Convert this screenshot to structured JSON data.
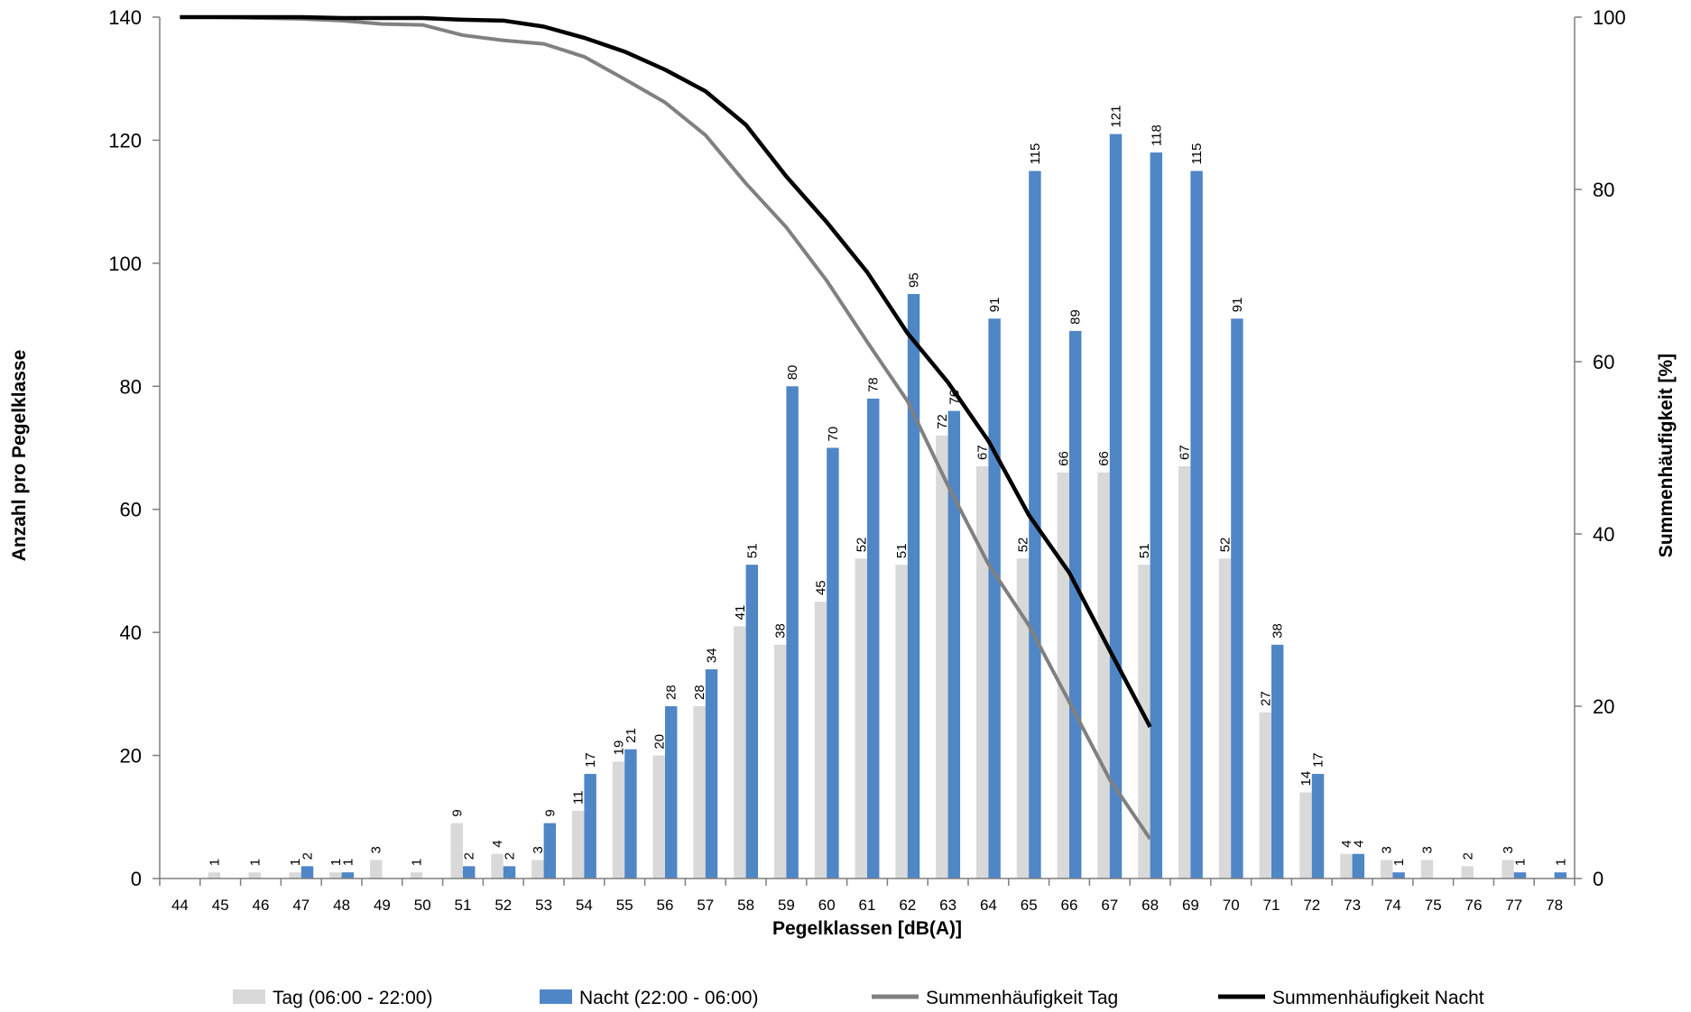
{
  "chart_data": {
    "type": "bar",
    "categories": [
      "44",
      "45",
      "46",
      "47",
      "48",
      "49",
      "50",
      "51",
      "52",
      "53",
      "54",
      "55",
      "56",
      "57",
      "58",
      "59",
      "60",
      "61",
      "62",
      "63",
      "64",
      "65",
      "66",
      "67",
      "68",
      "69",
      "70",
      "71",
      "72",
      "73",
      "74",
      "75",
      "76",
      "77",
      "78"
    ],
    "series": [
      {
        "name": "Tag (06:00 - 22:00)",
        "kind": "bar",
        "axis": "left",
        "color": "#d9d9d9",
        "values": [
          null,
          1,
          1,
          1,
          1,
          3,
          1,
          9,
          4,
          3,
          11,
          19,
          20,
          28,
          41,
          38,
          45,
          52,
          51,
          72,
          67,
          52,
          66,
          66,
          51,
          67,
          52,
          27,
          14,
          4,
          3,
          3,
          2,
          3,
          null
        ],
        "labels": [
          "",
          "1",
          "1",
          "1",
          "1",
          "3",
          "1",
          "9",
          "4",
          "3",
          "11",
          "19",
          "20",
          "28",
          "41",
          "38",
          "45",
          "52",
          "51",
          "72",
          "67",
          "52",
          "66",
          "66",
          "51",
          "67",
          "52",
          "27",
          "14",
          "4",
          "3",
          "3",
          "2",
          "3",
          ""
        ]
      },
      {
        "name": "Nacht (22:00 - 06:00)",
        "kind": "bar",
        "axis": "left",
        "color": "#4f86c6",
        "values": [
          null,
          null,
          null,
          2,
          1,
          null,
          null,
          2,
          2,
          9,
          17,
          21,
          28,
          34,
          51,
          80,
          70,
          78,
          95,
          76,
          91,
          115,
          89,
          121,
          118,
          115,
          91,
          38,
          17,
          4,
          1,
          null,
          null,
          1,
          1
        ],
        "labels": [
          "",
          "",
          "",
          "2",
          "1",
          "",
          "",
          "2",
          "2",
          "9",
          "17",
          "21",
          "28",
          "34",
          "51",
          "80",
          "70",
          "78",
          "95",
          "76",
          "91",
          "115",
          "89",
          "121",
          "118",
          "115",
          "91",
          "38",
          "17",
          "4",
          "1",
          "",
          "",
          "1",
          "1"
        ]
      },
      {
        "name": "Summenhäufigkeit Tag",
        "kind": "line",
        "axis": "right",
        "color": "#808080",
        "values": [
          100,
          100,
          99.9,
          99.8,
          99.6,
          99.2,
          99.1,
          97.9,
          97.3,
          96.9,
          95.4,
          92.8,
          90.1,
          86.3,
          80.7,
          75.6,
          69.4,
          62.3,
          55.4,
          45.6,
          36.5,
          29.4,
          20.5,
          11.5,
          4.6,
          null,
          null,
          null,
          null,
          null,
          null,
          null,
          null,
          null,
          null
        ]
      },
      {
        "name": "Summenhäufigkeit Nacht",
        "kind": "line",
        "axis": "right",
        "color": "#000000",
        "values": [
          100,
          100,
          100,
          100,
          99.9,
          99.9,
          99.9,
          99.7,
          99.6,
          98.9,
          97.6,
          96.0,
          93.9,
          91.4,
          87.5,
          81.5,
          76.2,
          70.4,
          63.3,
          57.6,
          50.8,
          42.2,
          35.5,
          26.5,
          17.6,
          null,
          null,
          null,
          null,
          null,
          null,
          null,
          null,
          null,
          null
        ]
      }
    ],
    "xlabel": "Pegelklassen [dB(A)]",
    "ylabel": "Anzahl pro Pegelklasse",
    "y2label": "Summenhäufigkeit [%]",
    "ylim": [
      0,
      140
    ],
    "y2lim": [
      0,
      100
    ],
    "yticks": [
      "0",
      "20",
      "40",
      "60",
      "80",
      "100",
      "120",
      "140"
    ],
    "y2ticks": [
      "0",
      "20",
      "40",
      "60",
      "80",
      "100"
    ],
    "grid": false,
    "legend_position": "bottom"
  }
}
